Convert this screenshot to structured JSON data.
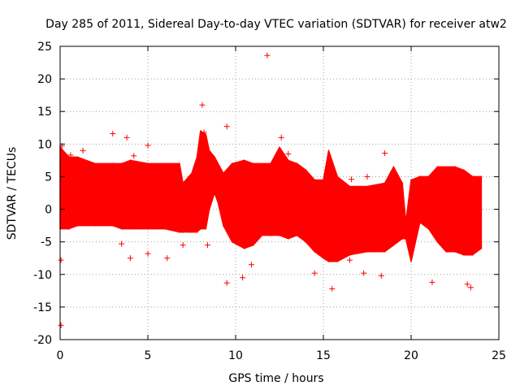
{
  "chart_data": {
    "type": "scatter",
    "title": "Day 285 of 2011, Sidereal Day-to-day VTEC variation (SDTVAR) for receiver atw2",
    "xlabel": "GPS time / hours",
    "ylabel": "SDTVAR / TECUs",
    "xlim": [
      0,
      25
    ],
    "ylim": [
      -20,
      25
    ],
    "xticks": [
      "0",
      "5",
      "10",
      "15",
      "20",
      "25"
    ],
    "yticks": [
      "-20",
      "-15",
      "-10",
      "-5",
      "0",
      "5",
      "10",
      "15",
      "20",
      "25"
    ],
    "grid": true,
    "marker": "+",
    "series_color": "#ff0000",
    "series": [
      {
        "name": "SDTVAR",
        "envelope": [
          {
            "x": 0.0,
            "low": -3.0,
            "high": 9.5
          },
          {
            "x": 0.5,
            "low": -3.0,
            "high": 8.0
          },
          {
            "x": 1.0,
            "low": -2.5,
            "high": 8.0
          },
          {
            "x": 2.0,
            "low": -2.5,
            "high": 7.0
          },
          {
            "x": 3.0,
            "low": -2.5,
            "high": 7.0
          },
          {
            "x": 3.5,
            "low": -3.0,
            "high": 7.0
          },
          {
            "x": 4.0,
            "low": -3.0,
            "high": 7.5
          },
          {
            "x": 5.0,
            "low": -3.0,
            "high": 7.0
          },
          {
            "x": 6.0,
            "low": -3.0,
            "high": 7.0
          },
          {
            "x": 6.8,
            "low": -3.5,
            "high": 7.0
          },
          {
            "x": 7.0,
            "low": -3.5,
            "high": 4.0
          },
          {
            "x": 7.5,
            "low": -3.5,
            "high": 5.5
          },
          {
            "x": 7.8,
            "low": -3.5,
            "high": 8.0
          },
          {
            "x": 8.0,
            "low": -3.0,
            "high": 12.0
          },
          {
            "x": 8.3,
            "low": -3.0,
            "high": 11.5
          },
          {
            "x": 8.5,
            "low": 0.0,
            "high": 9.0
          },
          {
            "x": 8.8,
            "low": 2.5,
            "high": 8.0
          },
          {
            "x": 9.0,
            "low": 1.0,
            "high": 7.0
          },
          {
            "x": 9.3,
            "low": -2.5,
            "high": 5.5
          },
          {
            "x": 9.8,
            "low": -5.0,
            "high": 7.0
          },
          {
            "x": 10.5,
            "low": -6.0,
            "high": 7.5
          },
          {
            "x": 11.0,
            "low": -5.5,
            "high": 7.0
          },
          {
            "x": 11.5,
            "low": -4.0,
            "high": 7.0
          },
          {
            "x": 12.0,
            "low": -4.0,
            "high": 7.0
          },
          {
            "x": 12.5,
            "low": -4.0,
            "high": 9.5
          },
          {
            "x": 13.0,
            "low": -4.5,
            "high": 7.5
          },
          {
            "x": 13.5,
            "low": -4.0,
            "high": 7.0
          },
          {
            "x": 14.0,
            "low": -5.0,
            "high": 6.0
          },
          {
            "x": 14.5,
            "low": -6.5,
            "high": 4.5
          },
          {
            "x": 15.0,
            "low": -7.5,
            "high": 4.5
          },
          {
            "x": 15.3,
            "low": -8.0,
            "high": 9.0
          },
          {
            "x": 15.8,
            "low": -8.0,
            "high": 5.0
          },
          {
            "x": 16.5,
            "low": -7.0,
            "high": 3.5
          },
          {
            "x": 17.5,
            "low": -6.5,
            "high": 3.5
          },
          {
            "x": 18.5,
            "low": -6.5,
            "high": 4.0
          },
          {
            "x": 19.0,
            "low": -5.5,
            "high": 6.5
          },
          {
            "x": 19.5,
            "low": -4.5,
            "high": 4.0
          },
          {
            "x": 19.7,
            "low": -4.5,
            "high": -2.0
          },
          {
            "x": 20.0,
            "low": -8.0,
            "high": 4.5
          },
          {
            "x": 20.5,
            "low": -2.0,
            "high": 5.0
          },
          {
            "x": 21.0,
            "low": -3.0,
            "high": 5.0
          },
          {
            "x": 21.5,
            "low": -5.0,
            "high": 6.5
          },
          {
            "x": 22.0,
            "low": -6.5,
            "high": 6.5
          },
          {
            "x": 22.5,
            "low": -6.5,
            "high": 6.5
          },
          {
            "x": 23.0,
            "low": -7.0,
            "high": 6.0
          },
          {
            "x": 23.5,
            "low": -7.0,
            "high": 5.0
          },
          {
            "x": 24.0,
            "low": -6.0,
            "high": 5.0
          }
        ],
        "points": [
          {
            "x": 0.05,
            "y": -17.8
          },
          {
            "x": 0.05,
            "y": -7.8
          },
          {
            "x": 0.1,
            "y": 9.7
          },
          {
            "x": 0.6,
            "y": 8.3
          },
          {
            "x": 1.3,
            "y": 9.0
          },
          {
            "x": 3.0,
            "y": 11.6
          },
          {
            "x": 3.5,
            "y": -5.3
          },
          {
            "x": 3.8,
            "y": 11.0
          },
          {
            "x": 4.0,
            "y": -7.5
          },
          {
            "x": 4.2,
            "y": 8.2
          },
          {
            "x": 5.0,
            "y": 9.8
          },
          {
            "x": 5.0,
            "y": -6.8
          },
          {
            "x": 6.1,
            "y": -7.5
          },
          {
            "x": 7.0,
            "y": -5.5
          },
          {
            "x": 8.1,
            "y": 16.0
          },
          {
            "x": 8.2,
            "y": 11.8
          },
          {
            "x": 8.4,
            "y": -5.5
          },
          {
            "x": 9.5,
            "y": 12.7
          },
          {
            "x": 9.5,
            "y": -11.3
          },
          {
            "x": 10.4,
            "y": -10.5
          },
          {
            "x": 10.9,
            "y": -8.5
          },
          {
            "x": 11.8,
            "y": 23.6
          },
          {
            "x": 12.6,
            "y": 11.0
          },
          {
            "x": 13.0,
            "y": 8.5
          },
          {
            "x": 14.5,
            "y": -9.8
          },
          {
            "x": 15.5,
            "y": -12.2
          },
          {
            "x": 15.9,
            "y": 4.0
          },
          {
            "x": 16.5,
            "y": -7.8
          },
          {
            "x": 16.6,
            "y": 4.6
          },
          {
            "x": 17.3,
            "y": -9.8
          },
          {
            "x": 17.5,
            "y": 5.0
          },
          {
            "x": 18.3,
            "y": -10.2
          },
          {
            "x": 18.5,
            "y": 8.6
          },
          {
            "x": 21.2,
            "y": -11.2
          },
          {
            "x": 23.2,
            "y": -11.5
          },
          {
            "x": 23.4,
            "y": -12.0
          }
        ]
      }
    ]
  }
}
